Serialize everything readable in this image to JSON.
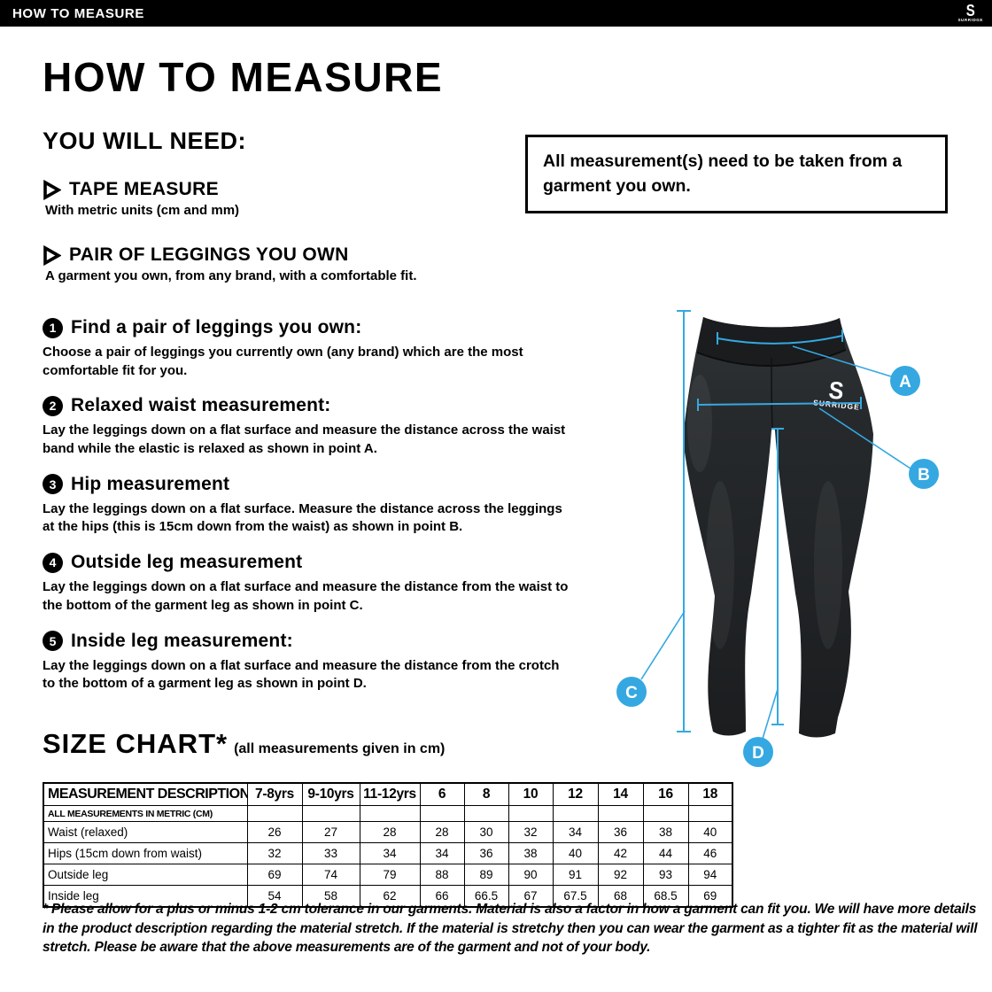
{
  "topbar": {
    "title": "HOW TO MEASURE",
    "brand": "SURRIDGE",
    "brand_glyph": "S"
  },
  "page": {
    "title": "HOW TO MEASURE"
  },
  "you_will_need": {
    "heading": "YOU WILL NEED:",
    "items": [
      {
        "title": "TAPE MEASURE",
        "subtitle": "With metric units (cm and mm)"
      },
      {
        "title": "PAIR OF LEGGINGS YOU OWN",
        "subtitle": "A garment you own, from any brand, with a comfortable fit."
      }
    ]
  },
  "note": "All measurement(s) need to be taken from a garment you own.",
  "steps": [
    {
      "num": "1",
      "title": "Find a pair of leggings you own:",
      "body": "Choose a pair of leggings you currently own (any brand) which are the most comfortable fit for you."
    },
    {
      "num": "2",
      "title": "Relaxed waist measurement:",
      "body": "Lay the leggings down on a flat surface and measure the distance across the waist band while the elastic is relaxed as shown in point A."
    },
    {
      "num": "3",
      "title": "Hip measurement",
      "body": "Lay the leggings down on a flat surface. Measure the distance across the leggings at the hips (this is 15cm down from the waist) as shown in point B."
    },
    {
      "num": "4",
      "title": "Outside leg measurement",
      "body": "Lay the leggings down on a flat surface and measure the distance from the waist to the bottom of the garment leg as shown in point C."
    },
    {
      "num": "5",
      "title": "Inside leg measurement:",
      "body": "Lay the leggings down on a flat surface and measure the distance from the crotch to the bottom of a garment leg as shown in point D."
    }
  ],
  "figure": {
    "labels": [
      "A",
      "B",
      "C",
      "D"
    ],
    "garment_logo_glyph": "S",
    "garment_logo": "SURRIDGE",
    "accent_color": "#35a8e1"
  },
  "size_chart": {
    "heading": "SIZE CHART*",
    "subheading": "(all measurements given in cm)",
    "table": {
      "header": [
        "MEASUREMENT DESCRIPTION",
        "7-8yrs",
        "9-10yrs",
        "11-12yrs",
        "6",
        "8",
        "10",
        "12",
        "14",
        "16",
        "18"
      ],
      "metric_note": "ALL MEASUREMENTS IN METRIC (CM)",
      "rows": [
        {
          "label": "Waist (relaxed)",
          "values": [
            "26",
            "27",
            "28",
            "28",
            "30",
            "32",
            "34",
            "36",
            "38",
            "40"
          ]
        },
        {
          "label": "Hips (15cm down from waist)",
          "values": [
            "32",
            "33",
            "34",
            "34",
            "36",
            "38",
            "40",
            "42",
            "44",
            "46"
          ]
        },
        {
          "label": "Outside leg",
          "values": [
            "69",
            "74",
            "79",
            "88",
            "89",
            "90",
            "91",
            "92",
            "93",
            "94"
          ]
        },
        {
          "label": "Inside leg",
          "values": [
            "54",
            "58",
            "62",
            "66",
            "66.5",
            "67",
            "67.5",
            "68",
            "68.5",
            "69"
          ]
        }
      ]
    }
  },
  "footnote": "* Please allow for a plus or minus 1-2 cm tolerance in our garments. Material is also a factor in how a garment can fit you. We will have more details in the product description regarding the material stretch.  If the material is stretchy then you can wear the garment as a tighter fit as the material will stretch.  Please be aware that the above measurements are of the garment and not of your body."
}
